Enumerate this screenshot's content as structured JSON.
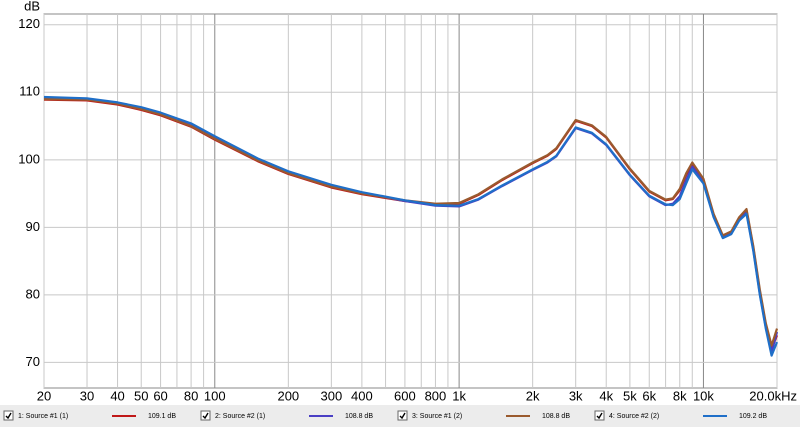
{
  "chart_data": {
    "type": "line",
    "y_label": "dB",
    "xscale": "log",
    "grid": true,
    "xlim": [
      20,
      20000
    ],
    "ylim": [
      66.2,
      121.6
    ],
    "xticks": [
      20,
      30,
      40,
      50,
      60,
      80,
      100,
      200,
      300,
      400,
      600,
      800,
      {
        "value": 1000,
        "label": "1k"
      },
      {
        "value": 2000,
        "label": "2k"
      },
      {
        "value": 3000,
        "label": "3k"
      },
      {
        "value": 4000,
        "label": "4k"
      },
      {
        "value": 5000,
        "label": "5k"
      },
      {
        "value": 6000,
        "label": "6k"
      },
      {
        "value": 8000,
        "label": "8k"
      },
      {
        "value": 10000,
        "label": "10k"
      },
      {
        "value": 20000,
        "label": "20.0kHz"
      }
    ],
    "xgrid_minor": [
      70,
      90,
      500,
      700,
      900,
      7000,
      9000
    ],
    "yticks": [
      70,
      80,
      90,
      100,
      110,
      120
    ],
    "x": [
      20,
      30,
      40,
      50,
      60,
      80,
      100,
      150,
      200,
      300,
      400,
      600,
      800,
      1000,
      1200,
      1500,
      2000,
      2300,
      2500,
      3000,
      3500,
      4000,
      5000,
      6000,
      7000,
      7500,
      8000,
      8500,
      9000,
      10000,
      11000,
      12000,
      13000,
      14000,
      15000,
      16000,
      17000,
      18000,
      19000,
      20000
    ],
    "series": [
      {
        "name": "1: Source #1 (1)",
        "legend_value": "109.1 dB",
        "color": "#c01818",
        "values": [
          108.9,
          108.8,
          108.2,
          107.4,
          106.6,
          104.9,
          103.0,
          99.8,
          97.9,
          95.9,
          94.9,
          93.9,
          93.4,
          93.5,
          94.8,
          97.0,
          99.5,
          100.6,
          101.6,
          105.8,
          105.0,
          103.3,
          98.6,
          95.3,
          94.0,
          94.2,
          95.5,
          97.8,
          99.4,
          97.0,
          91.8,
          88.6,
          89.2,
          91.3,
          92.5,
          87.0,
          80.5,
          75.5,
          72.0,
          74.0
        ]
      },
      {
        "name": "2: Source #2 (1)",
        "legend_value": "108.8 dB",
        "color": "#4a3fc4",
        "values": [
          109.2,
          109.0,
          108.4,
          107.7,
          106.9,
          105.3,
          103.4,
          100.1,
          98.2,
          96.2,
          95.1,
          93.9,
          93.2,
          93.1,
          94.1,
          96.1,
          98.5,
          99.6,
          100.5,
          104.7,
          103.9,
          102.2,
          97.7,
          94.6,
          93.3,
          93.5,
          94.6,
          97.0,
          99.0,
          96.8,
          91.6,
          88.5,
          89.1,
          91.1,
          92.2,
          86.7,
          80.2,
          75.2,
          71.5,
          74.5
        ]
      },
      {
        "name": "3: Source #1 (2)",
        "legend_value": "108.8 dB",
        "color": "#9a5a2e",
        "values": [
          109.0,
          108.9,
          108.3,
          107.5,
          106.7,
          105.0,
          103.1,
          99.9,
          98.0,
          96.0,
          95.0,
          94.0,
          93.5,
          93.6,
          94.9,
          97.1,
          99.6,
          100.7,
          101.7,
          105.9,
          105.1,
          103.4,
          98.7,
          95.4,
          94.1,
          94.3,
          95.7,
          98.0,
          99.6,
          97.2,
          92.0,
          88.8,
          89.4,
          91.5,
          92.7,
          87.2,
          80.8,
          75.8,
          72.5,
          75.0
        ]
      },
      {
        "name": "4: Source #2 (2)",
        "legend_value": "109.2 dB",
        "color": "#1f6fc8",
        "values": [
          109.3,
          109.1,
          108.5,
          107.8,
          107.0,
          105.4,
          103.5,
          100.2,
          98.3,
          96.3,
          95.2,
          94.0,
          93.3,
          93.2,
          94.2,
          96.2,
          98.6,
          99.7,
          100.6,
          104.8,
          104.0,
          102.3,
          97.8,
          94.7,
          93.4,
          93.3,
          94.2,
          96.5,
          98.6,
          96.5,
          91.5,
          88.4,
          89.0,
          91.0,
          92.0,
          86.5,
          80.0,
          75.0,
          71.0,
          73.0
        ]
      }
    ]
  }
}
